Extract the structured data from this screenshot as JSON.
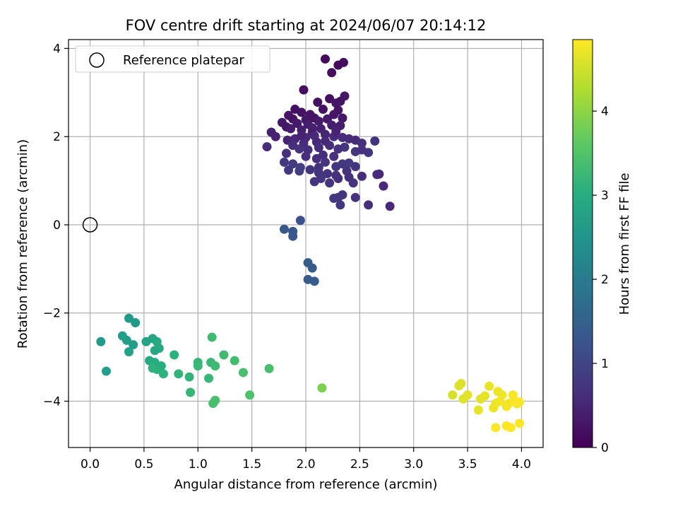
{
  "chart_data": {
    "type": "scatter",
    "title": "FOV centre drift starting at 2024/06/07 20:14:12",
    "xlabel": "Angular distance from reference (arcmin)",
    "ylabel": "Rotation from reference (arcmin)",
    "xlim": [
      -0.2,
      4.2
    ],
    "ylim": [
      -5.05,
      4.2
    ],
    "xticks": [
      "0.0",
      "0.5",
      "1.0",
      "1.5",
      "2.0",
      "2.5",
      "3.0",
      "3.5",
      "4.0"
    ],
    "yticks": [
      "−4",
      "−2",
      "0",
      "2",
      "4"
    ],
    "grid": true,
    "legend": {
      "position": "top-left",
      "entries": [
        "Reference platepar"
      ]
    },
    "reference_point": {
      "x": 0.0,
      "y": 0.0
    },
    "colorbar": {
      "label": "Hours from first FF file",
      "colormap": "viridis",
      "range": [
        0,
        4.85
      ],
      "ticks": [
        "0",
        "1",
        "2",
        "3",
        "4"
      ]
    },
    "points": [
      [
        2.18,
        3.76,
        0.12
      ],
      [
        2.35,
        3.68,
        0.15
      ],
      [
        2.3,
        3.62,
        0.13
      ],
      [
        2.24,
        3.45,
        0.14
      ],
      [
        1.98,
        3.06,
        0.18
      ],
      [
        2.22,
        2.86,
        0.2
      ],
      [
        2.36,
        2.92,
        0.3
      ],
      [
        2.32,
        2.8,
        0.25
      ],
      [
        2.11,
        2.78,
        0.22
      ],
      [
        2.28,
        2.76,
        0.28
      ],
      [
        2.16,
        2.62,
        0.24
      ],
      [
        2.3,
        2.6,
        0.26
      ],
      [
        1.9,
        2.62,
        0.2
      ],
      [
        1.96,
        2.55,
        0.22
      ],
      [
        2.04,
        2.5,
        0.25
      ],
      [
        2.08,
        2.42,
        0.23
      ],
      [
        2.0,
        2.38,
        0.3
      ],
      [
        1.84,
        2.48,
        0.28
      ],
      [
        1.88,
        2.4,
        0.26
      ],
      [
        1.78,
        2.32,
        0.33
      ],
      [
        1.82,
        2.22,
        0.3
      ],
      [
        1.92,
        2.3,
        0.35
      ],
      [
        2.02,
        2.28,
        0.38
      ],
      [
        2.12,
        2.35,
        0.36
      ],
      [
        2.2,
        2.4,
        0.32
      ],
      [
        2.26,
        2.5,
        0.29
      ],
      [
        2.34,
        2.42,
        0.31
      ],
      [
        2.24,
        2.26,
        0.4
      ],
      [
        2.32,
        2.25,
        0.42
      ],
      [
        2.14,
        2.18,
        0.44
      ],
      [
        2.06,
        2.1,
        0.46
      ],
      [
        1.96,
        2.15,
        0.4
      ],
      [
        1.86,
        2.18,
        0.38
      ],
      [
        1.68,
        2.1,
        0.45
      ],
      [
        1.72,
        2.0,
        0.48
      ],
      [
        1.83,
        1.92,
        0.5
      ],
      [
        1.9,
        1.95,
        0.52
      ],
      [
        2.0,
        1.98,
        0.55
      ],
      [
        2.08,
        2.02,
        0.58
      ],
      [
        2.18,
        2.05,
        0.5
      ],
      [
        2.26,
        2.0,
        0.56
      ],
      [
        2.34,
        1.98,
        0.6
      ],
      [
        2.4,
        1.95,
        0.62
      ],
      [
        2.46,
        1.92,
        0.58
      ],
      [
        2.52,
        1.85,
        0.66
      ],
      [
        2.64,
        1.9,
        0.7
      ],
      [
        2.18,
        1.9,
        0.54
      ],
      [
        2.1,
        1.88,
        0.57
      ],
      [
        1.98,
        1.85,
        0.6
      ],
      [
        1.88,
        1.8,
        0.63
      ],
      [
        1.94,
        1.72,
        0.7
      ],
      [
        2.02,
        1.7,
        0.65
      ],
      [
        2.12,
        1.75,
        0.6
      ],
      [
        2.22,
        1.8,
        0.62
      ],
      [
        2.3,
        1.72,
        0.68
      ],
      [
        2.36,
        1.76,
        0.72
      ],
      [
        2.46,
        1.66,
        0.75
      ],
      [
        2.58,
        1.64,
        0.72
      ],
      [
        2.52,
        1.7,
        0.68
      ],
      [
        1.82,
        1.62,
        0.66
      ],
      [
        1.64,
        1.77,
        0.6
      ],
      [
        1.8,
        1.42,
        0.8
      ],
      [
        1.88,
        1.38,
        0.85
      ],
      [
        1.84,
        1.24,
        0.82
      ],
      [
        1.95,
        1.3,
        0.9
      ],
      [
        1.94,
        1.22,
        0.88
      ],
      [
        2.04,
        1.25,
        0.74
      ],
      [
        2.12,
        1.3,
        0.7
      ],
      [
        2.18,
        1.42,
        0.72
      ],
      [
        2.28,
        1.32,
        0.76
      ],
      [
        2.34,
        1.38,
        0.78
      ],
      [
        2.4,
        1.4,
        0.8
      ],
      [
        2.46,
        1.32,
        0.74
      ],
      [
        2.38,
        1.22,
        0.7
      ],
      [
        2.28,
        1.12,
        0.68
      ],
      [
        2.2,
        1.16,
        0.72
      ],
      [
        2.12,
        1.18,
        0.74
      ],
      [
        2.14,
        1.05,
        0.76
      ],
      [
        2.08,
        0.98,
        0.72
      ],
      [
        2.22,
        0.95,
        0.7
      ],
      [
        2.3,
        1.05,
        0.66
      ],
      [
        2.4,
        1.08,
        0.64
      ],
      [
        2.44,
        0.95,
        0.68
      ],
      [
        2.52,
        1.1,
        0.62
      ],
      [
        2.66,
        1.14,
        0.6
      ],
      [
        2.68,
        1.15,
        0.58
      ],
      [
        2.72,
        0.88,
        0.55
      ],
      [
        2.78,
        0.42,
        0.55
      ],
      [
        2.58,
        0.45,
        0.65
      ],
      [
        2.46,
        0.62,
        0.7
      ],
      [
        2.34,
        0.68,
        0.72
      ],
      [
        2.3,
        0.62,
        0.74
      ],
      [
        2.26,
        0.6,
        0.76
      ],
      [
        2.32,
        0.45,
        0.8
      ],
      [
        2.1,
        1.5,
        0.65
      ],
      [
        2.0,
        1.55,
        0.6
      ],
      [
        2.16,
        1.58,
        0.66
      ],
      [
        2.26,
        1.55,
        0.68
      ],
      [
        2.06,
        2.2,
        0.42
      ],
      [
        1.96,
        2.02,
        0.45
      ],
      [
        2.28,
        2.12,
        0.47
      ],
      [
        1.95,
        0.1,
        1.2
      ],
      [
        1.8,
        -0.1,
        1.3
      ],
      [
        1.88,
        -0.15,
        1.3
      ],
      [
        1.88,
        -0.26,
        1.3
      ],
      [
        2.02,
        -0.86,
        1.4
      ],
      [
        2.06,
        -0.98,
        1.4
      ],
      [
        2.02,
        -1.24,
        1.4
      ],
      [
        2.08,
        -1.28,
        1.4
      ],
      [
        0.36,
        -2.12,
        2.6
      ],
      [
        0.42,
        -2.22,
        2.6
      ],
      [
        0.3,
        -2.52,
        2.7
      ],
      [
        0.34,
        -2.62,
        2.7
      ],
      [
        0.4,
        -2.72,
        2.7
      ],
      [
        0.36,
        -2.88,
        2.75
      ],
      [
        0.1,
        -2.65,
        2.6
      ],
      [
        0.15,
        -3.32,
        2.7
      ],
      [
        0.52,
        -2.65,
        2.8
      ],
      [
        0.58,
        -2.58,
        2.85
      ],
      [
        0.62,
        -2.65,
        2.9
      ],
      [
        0.64,
        -2.8,
        2.95
      ],
      [
        0.6,
        -2.85,
        2.9
      ],
      [
        0.55,
        -3.08,
        2.95
      ],
      [
        0.6,
        -3.12,
        3.0
      ],
      [
        0.66,
        -3.2,
        3.0
      ],
      [
        0.62,
        -3.28,
        3.05
      ],
      [
        0.58,
        -3.25,
        3.1
      ],
      [
        0.68,
        -3.38,
        3.1
      ],
      [
        0.78,
        -2.95,
        3.1
      ],
      [
        0.82,
        -3.38,
        3.15
      ],
      [
        0.92,
        -3.45,
        3.15
      ],
      [
        0.93,
        -3.8,
        3.2
      ],
      [
        1.0,
        -3.12,
        3.2
      ],
      [
        1.0,
        -3.2,
        3.25
      ],
      [
        1.1,
        -3.48,
        3.2
      ],
      [
        1.12,
        -3.12,
        3.25
      ],
      [
        1.16,
        -3.2,
        3.3
      ],
      [
        1.13,
        -2.55,
        3.3
      ],
      [
        1.24,
        -2.95,
        3.3
      ],
      [
        1.34,
        -3.08,
        3.35
      ],
      [
        1.42,
        -3.35,
        3.4
      ],
      [
        1.14,
        -4.05,
        3.4
      ],
      [
        1.16,
        -3.98,
        3.4
      ],
      [
        1.48,
        -3.86,
        3.45
      ],
      [
        1.66,
        -3.26,
        3.4
      ],
      [
        2.15,
        -3.7,
        3.85
      ],
      [
        3.36,
        -3.86,
        4.55
      ],
      [
        3.42,
        -3.65,
        4.6
      ],
      [
        3.44,
        -3.6,
        4.6
      ],
      [
        3.46,
        -3.95,
        4.62
      ],
      [
        3.5,
        -3.86,
        4.62
      ],
      [
        3.6,
        -4.2,
        4.68
      ],
      [
        3.62,
        -3.95,
        4.65
      ],
      [
        3.66,
        -3.88,
        4.68
      ],
      [
        3.7,
        -3.66,
        4.7
      ],
      [
        3.74,
        -4.15,
        4.72
      ],
      [
        3.76,
        -4.05,
        4.72
      ],
      [
        3.78,
        -3.78,
        4.72
      ],
      [
        3.8,
        -4.0,
        4.75
      ],
      [
        3.82,
        -3.86,
        4.75
      ],
      [
        3.86,
        -4.12,
        4.78
      ],
      [
        3.88,
        -4.05,
        4.78
      ],
      [
        3.92,
        -3.86,
        4.8
      ],
      [
        3.94,
        -4.0,
        4.8
      ],
      [
        3.96,
        -4.06,
        4.82
      ],
      [
        3.98,
        -4.02,
        4.82
      ],
      [
        3.86,
        -4.56,
        4.84
      ],
      [
        3.9,
        -4.6,
        4.85
      ],
      [
        3.98,
        -4.5,
        4.85
      ],
      [
        3.76,
        -4.6,
        4.85
      ]
    ]
  }
}
